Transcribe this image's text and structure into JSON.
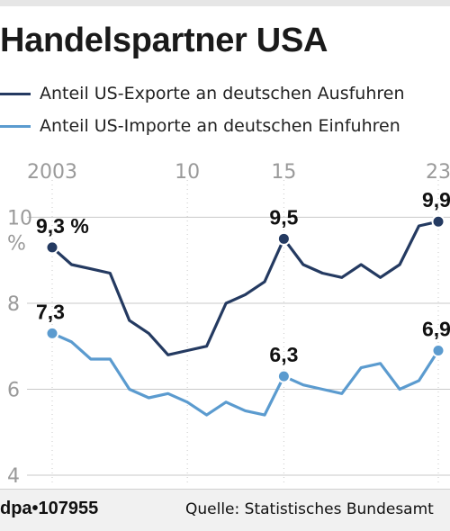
{
  "header": {
    "title": "Handelspartner USA"
  },
  "colors": {
    "exports": "#243a61",
    "imports": "#5b9bcf",
    "grid": "#c9c9c9",
    "axis_text": "#9a9a9a"
  },
  "chart_data": {
    "type": "line",
    "title": "Handelspartner USA",
    "x_tick_labels": [
      {
        "x": 2003,
        "label": "2003"
      },
      {
        "x": 2010,
        "label": "10"
      },
      {
        "x": 2015,
        "label": "15"
      },
      {
        "x": 2023,
        "label": "23"
      }
    ],
    "y_ticks": [
      4,
      6,
      8,
      10
    ],
    "y_tick_labels": [
      "4",
      "6",
      "8",
      "10"
    ],
    "y_unit": "%",
    "xlim": [
      2002.5,
      2023.5
    ],
    "ylim": [
      4,
      10.7
    ],
    "grid": true,
    "legend": "top-left",
    "series": [
      {
        "name": "Anteil US-Exporte an deutschen Ausfuhren",
        "color": "#243a61",
        "x": [
          2003,
          2004,
          2005,
          2006,
          2007,
          2008,
          2009,
          2010,
          2011,
          2012,
          2013,
          2014,
          2015,
          2016,
          2017,
          2018,
          2019,
          2020,
          2021,
          2022,
          2023
        ],
        "values": [
          9.3,
          8.9,
          8.8,
          8.7,
          7.6,
          7.3,
          6.8,
          6.9,
          7.0,
          8.0,
          8.2,
          8.5,
          9.5,
          8.9,
          8.7,
          8.6,
          8.9,
          8.6,
          8.9,
          9.8,
          9.9
        ],
        "labels": [
          {
            "x": 2003,
            "text": "9,3 %"
          },
          {
            "x": 2015,
            "text": "9,5"
          },
          {
            "x": 2023,
            "text": "9,9"
          }
        ]
      },
      {
        "name": "Anteil US-Importe an deutschen Einfuhren",
        "color": "#5b9bcf",
        "x": [
          2003,
          2004,
          2005,
          2006,
          2007,
          2008,
          2009,
          2010,
          2011,
          2012,
          2013,
          2014,
          2015,
          2016,
          2017,
          2018,
          2019,
          2020,
          2021,
          2022,
          2023
        ],
        "values": [
          7.3,
          7.1,
          6.7,
          6.7,
          6.0,
          5.8,
          5.9,
          5.7,
          5.4,
          5.7,
          5.5,
          5.4,
          6.3,
          6.1,
          6.0,
          5.9,
          6.5,
          6.6,
          6.0,
          6.2,
          6.9
        ],
        "labels": [
          {
            "x": 2003,
            "text": "7,3"
          },
          {
            "x": 2015,
            "text": "6,3"
          },
          {
            "x": 2023,
            "text": "6,9"
          }
        ]
      }
    ]
  },
  "footer": {
    "credit": "dpa•107955",
    "source": "Quelle: Statistisches Bundesamt"
  }
}
